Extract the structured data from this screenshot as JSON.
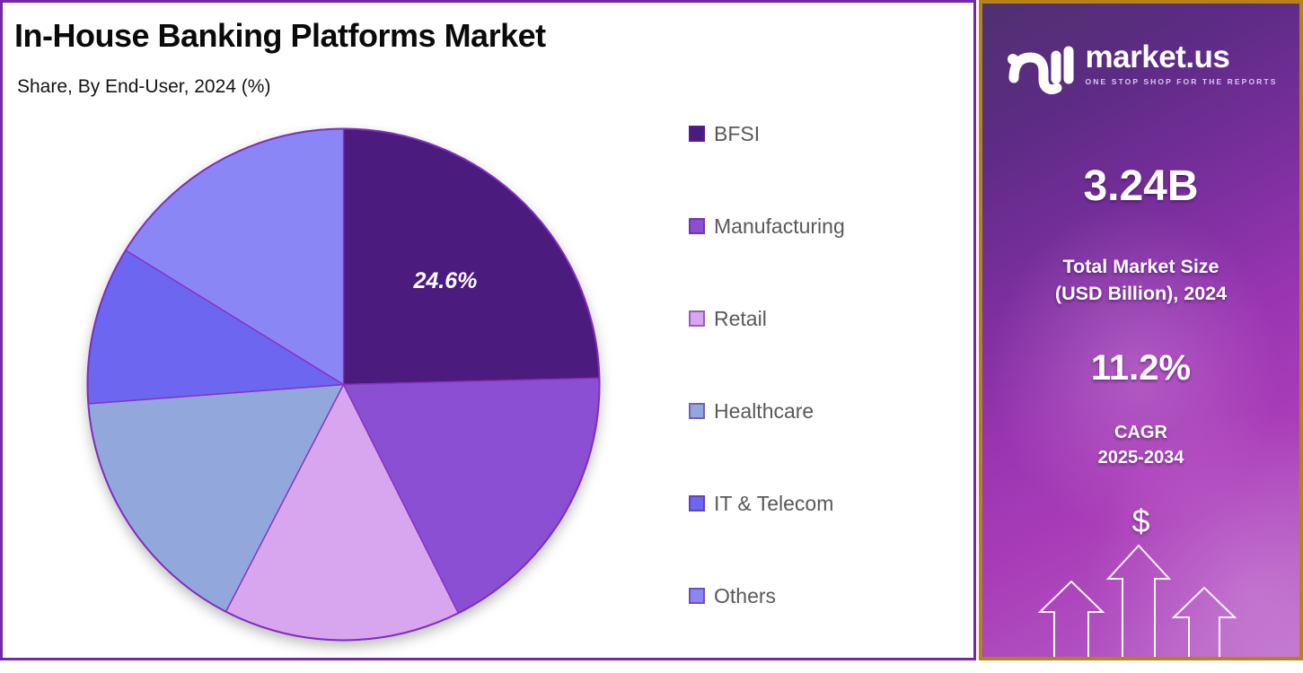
{
  "header": {
    "title": "In-House Banking Platforms Market",
    "subtitle": "Share, By End-User, 2024 (%)"
  },
  "chart_data": {
    "type": "pie",
    "title": "In-House Banking Platforms Market",
    "subtitle": "Share, By End-User, 2024 (%)",
    "unit": "percent share",
    "start_angle_deg": 0,
    "direction": "clockwise",
    "legend_position": "right",
    "slice_border_color": "#8c2fc4",
    "outer_ring_color": "#7f2dbd",
    "slices": [
      {
        "name": "BFSI",
        "value": 24.6,
        "label": "24.6%",
        "color": "#4b1b7e"
      },
      {
        "name": "Manufacturing",
        "value": 18.0,
        "label": null,
        "color": "#8a4fd2"
      },
      {
        "name": "Retail",
        "value": 15.0,
        "label": null,
        "color": "#d7a6ee"
      },
      {
        "name": "Healthcare",
        "value": 16.2,
        "label": null,
        "color": "#92a8dc"
      },
      {
        "name": "IT & Telecom",
        "value": 10.0,
        "label": null,
        "color": "#6c66f0"
      },
      {
        "name": "Others",
        "value": 16.2,
        "label": null,
        "color": "#8b86f6"
      }
    ]
  },
  "brand_panel": {
    "logo_text": "market.us",
    "logo_tagline": "ONE STOP SHOP FOR THE REPORTS",
    "market_size_value": "3.24B",
    "market_size_label_line1": "Total Market Size",
    "market_size_label_line2": "(USD Billion), 2024",
    "cagr_value": "11.2%",
    "cagr_label_line1": "CAGR",
    "cagr_label_line2": "2025-2034",
    "dollar_symbol": "$",
    "colors": {
      "panel_border_gold": "#b5831a",
      "panel_base_purple": "#9a35b2",
      "text_white": "#ffffff"
    }
  },
  "frame": {
    "chart_border_color": "#7229a8"
  }
}
